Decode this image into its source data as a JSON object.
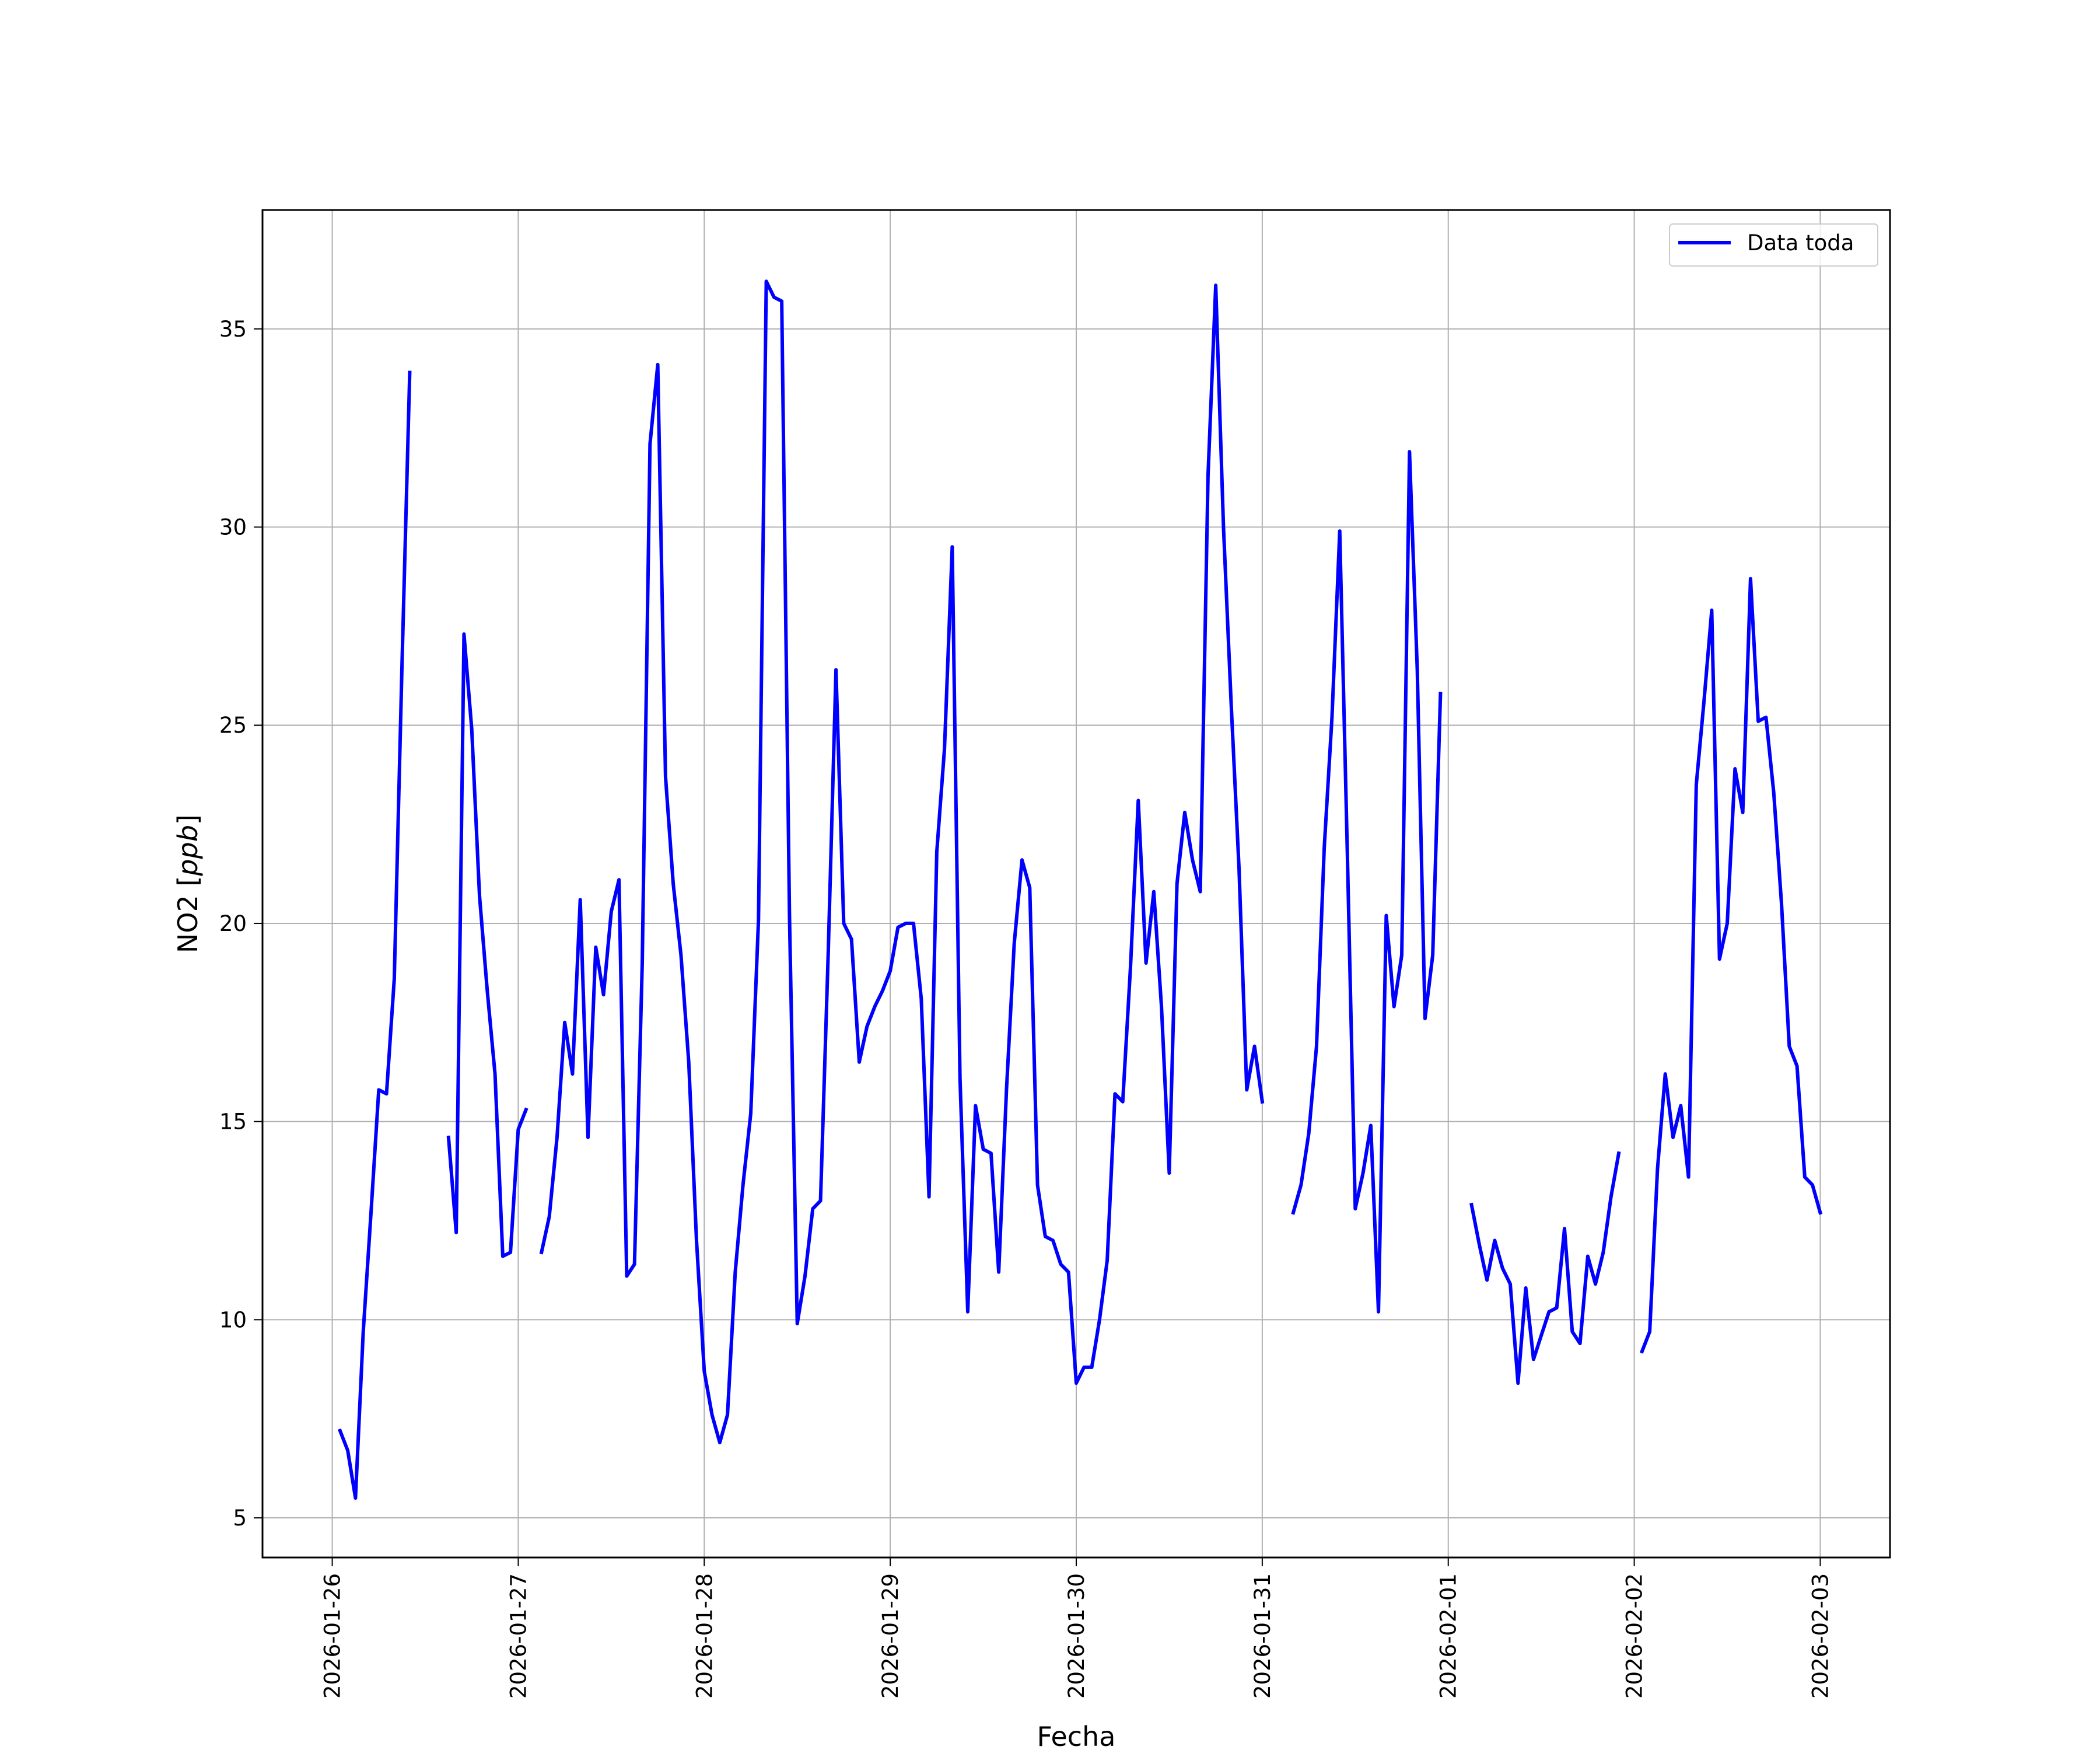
{
  "chart_data": {
    "type": "line",
    "title": "",
    "xlabel": "Fecha",
    "ylabel_main": "NO2 [",
    "ylabel_unit": "ppb",
    "ylabel_close": "]",
    "xlim": [
      "2026-01-25T15:00",
      "2026-02-03T09:00"
    ],
    "ylim": [
      4,
      38
    ],
    "grid": true,
    "legend": {
      "placement": "top-right",
      "entries": [
        "Data toda"
      ]
    },
    "x_ticks": [
      "2026-01-26",
      "2026-01-27",
      "2026-01-28",
      "2026-01-29",
      "2026-01-30",
      "2026-01-31",
      "2026-02-01",
      "2026-02-02",
      "2026-02-03"
    ],
    "y_ticks": [
      5,
      10,
      15,
      20,
      25,
      30,
      35
    ],
    "series": [
      {
        "name": "Data toda",
        "color": "#0000ff",
        "points": [
          [
            "2026-01-26T01:00",
            7.2
          ],
          [
            "2026-01-26T02:00",
            6.7
          ],
          [
            "2026-01-26T03:00",
            5.5
          ],
          [
            "2026-01-26T04:00",
            9.7
          ],
          [
            "2026-01-26T05:00",
            12.7
          ],
          [
            "2026-01-26T06:00",
            15.8
          ],
          [
            "2026-01-26T07:00",
            15.7
          ],
          [
            "2026-01-26T08:00",
            18.6
          ],
          [
            "2026-01-26T09:00",
            26.5
          ],
          [
            "2026-01-26T10:00",
            33.9
          ],
          null,
          [
            "2026-01-26T15:00",
            14.6
          ],
          [
            "2026-01-26T16:00",
            12.2
          ],
          [
            "2026-01-26T17:00",
            27.3
          ],
          [
            "2026-01-26T18:00",
            24.9
          ],
          [
            "2026-01-26T19:00",
            20.7
          ],
          [
            "2026-01-26T20:00",
            18.3
          ],
          [
            "2026-01-26T21:00",
            16.2
          ],
          [
            "2026-01-26T22:00",
            11.6
          ],
          [
            "2026-01-26T23:00",
            11.7
          ],
          [
            "2026-01-27T00:00",
            14.8
          ],
          [
            "2026-01-27T01:00",
            15.3
          ],
          null,
          [
            "2026-01-27T03:00",
            11.7
          ],
          [
            "2026-01-27T04:00",
            12.6
          ],
          [
            "2026-01-27T05:00",
            14.6
          ],
          [
            "2026-01-27T06:00",
            17.5
          ],
          [
            "2026-01-27T07:00",
            16.2
          ],
          [
            "2026-01-27T08:00",
            20.6
          ],
          [
            "2026-01-27T09:00",
            14.6
          ],
          [
            "2026-01-27T10:00",
            19.4
          ],
          [
            "2026-01-27T11:00",
            18.2
          ],
          [
            "2026-01-27T12:00",
            20.3
          ],
          [
            "2026-01-27T13:00",
            21.1
          ],
          [
            "2026-01-27T14:00",
            11.1
          ],
          [
            "2026-01-27T15:00",
            11.4
          ],
          [
            "2026-01-27T16:00",
            19.0
          ],
          [
            "2026-01-27T17:00",
            32.1
          ],
          [
            "2026-01-27T18:00",
            34.1
          ],
          [
            "2026-01-27T19:00",
            23.7
          ],
          [
            "2026-01-27T20:00",
            21.0
          ],
          [
            "2026-01-27T21:00",
            19.2
          ],
          [
            "2026-01-27T22:00",
            16.5
          ],
          [
            "2026-01-27T23:00",
            12.0
          ],
          [
            "2026-01-28T00:00",
            8.7
          ],
          [
            "2026-01-28T01:00",
            7.6
          ],
          [
            "2026-01-28T02:00",
            6.9
          ],
          [
            "2026-01-28T03:00",
            7.6
          ],
          [
            "2026-01-28T04:00",
            11.2
          ],
          [
            "2026-01-28T05:00",
            13.4
          ],
          [
            "2026-01-28T06:00",
            15.2
          ],
          [
            "2026-01-28T07:00",
            20.1
          ],
          [
            "2026-01-28T08:00",
            36.2
          ],
          [
            "2026-01-28T09:00",
            35.8
          ],
          [
            "2026-01-28T10:00",
            35.7
          ],
          [
            "2026-01-28T11:00",
            20.2
          ],
          [
            "2026-01-28T12:00",
            9.9
          ],
          [
            "2026-01-28T13:00",
            11.1
          ],
          [
            "2026-01-28T14:00",
            12.8
          ],
          [
            "2026-01-28T15:00",
            13.0
          ],
          [
            "2026-01-28T16:00",
            19.3
          ],
          [
            "2026-01-28T17:00",
            26.4
          ],
          [
            "2026-01-28T18:00",
            20.0
          ],
          [
            "2026-01-28T19:00",
            19.6
          ],
          [
            "2026-01-28T20:00",
            16.5
          ],
          [
            "2026-01-28T21:00",
            17.4
          ],
          [
            "2026-01-28T22:00",
            17.9
          ],
          [
            "2026-01-28T23:00",
            18.3
          ],
          [
            "2026-01-29T00:00",
            18.8
          ],
          [
            "2026-01-29T01:00",
            19.9
          ],
          [
            "2026-01-29T02:00",
            20.0
          ],
          [
            "2026-01-29T03:00",
            20.0
          ],
          [
            "2026-01-29T04:00",
            18.1
          ],
          [
            "2026-01-29T05:00",
            13.1
          ],
          [
            "2026-01-29T06:00",
            21.8
          ],
          [
            "2026-01-29T07:00",
            24.4
          ],
          [
            "2026-01-29T08:00",
            29.5
          ],
          [
            "2026-01-29T09:00",
            16.1
          ],
          [
            "2026-01-29T10:00",
            10.2
          ],
          [
            "2026-01-29T11:00",
            15.4
          ],
          [
            "2026-01-29T12:00",
            14.3
          ],
          [
            "2026-01-29T13:00",
            14.2
          ],
          [
            "2026-01-29T14:00",
            11.2
          ],
          [
            "2026-01-29T15:00",
            15.8
          ],
          [
            "2026-01-29T16:00",
            19.5
          ],
          [
            "2026-01-29T17:00",
            21.6
          ],
          [
            "2026-01-29T18:00",
            20.9
          ],
          [
            "2026-01-29T19:00",
            13.4
          ],
          [
            "2026-01-29T20:00",
            12.1
          ],
          [
            "2026-01-29T21:00",
            12.0
          ],
          [
            "2026-01-29T22:00",
            11.4
          ],
          [
            "2026-01-29T23:00",
            11.2
          ],
          [
            "2026-01-30T00:00",
            8.4
          ],
          [
            "2026-01-30T01:00",
            8.8
          ],
          [
            "2026-01-30T02:00",
            8.8
          ],
          [
            "2026-01-30T03:00",
            10.0
          ],
          [
            "2026-01-30T04:00",
            11.5
          ],
          [
            "2026-01-30T05:00",
            15.7
          ],
          [
            "2026-01-30T06:00",
            15.5
          ],
          [
            "2026-01-30T07:00",
            18.9
          ],
          [
            "2026-01-30T08:00",
            23.1
          ],
          [
            "2026-01-30T09:00",
            19.0
          ],
          [
            "2026-01-30T10:00",
            20.8
          ],
          [
            "2026-01-30T11:00",
            17.9
          ],
          [
            "2026-01-30T12:00",
            13.7
          ],
          [
            "2026-01-30T13:00",
            21.0
          ],
          [
            "2026-01-30T14:00",
            22.8
          ],
          [
            "2026-01-30T15:00",
            21.6
          ],
          [
            "2026-01-30T16:00",
            20.8
          ],
          [
            "2026-01-30T17:00",
            31.3
          ],
          [
            "2026-01-30T18:00",
            36.1
          ],
          [
            "2026-01-30T19:00",
            30.0
          ],
          [
            "2026-01-30T20:00",
            25.5
          ],
          [
            "2026-01-30T21:00",
            21.4
          ],
          [
            "2026-01-30T22:00",
            15.8
          ],
          [
            "2026-01-30T23:00",
            16.9
          ],
          [
            "2026-01-31T00:00",
            15.5
          ],
          null,
          [
            "2026-01-31T04:00",
            12.7
          ],
          [
            "2026-01-31T05:00",
            13.4
          ],
          [
            "2026-01-31T06:00",
            14.7
          ],
          [
            "2026-01-31T07:00",
            16.9
          ],
          [
            "2026-01-31T08:00",
            21.9
          ],
          [
            "2026-01-31T09:00",
            25.2
          ],
          [
            "2026-01-31T10:00",
            29.9
          ],
          [
            "2026-01-31T11:00",
            21.6
          ],
          [
            "2026-01-31T12:00",
            12.8
          ],
          [
            "2026-01-31T13:00",
            13.7
          ],
          [
            "2026-01-31T14:00",
            14.9
          ],
          [
            "2026-01-31T15:00",
            10.2
          ],
          [
            "2026-01-31T16:00",
            20.2
          ],
          [
            "2026-01-31T17:00",
            17.9
          ],
          [
            "2026-01-31T18:00",
            19.2
          ],
          [
            "2026-01-31T19:00",
            31.9
          ],
          [
            "2026-01-31T20:00",
            26.4
          ],
          [
            "2026-01-31T21:00",
            17.6
          ],
          [
            "2026-01-31T22:00",
            19.2
          ],
          [
            "2026-01-31T23:00",
            25.8
          ],
          null,
          [
            "2026-02-01T03:00",
            12.9
          ],
          [
            "2026-02-01T04:00",
            11.9
          ],
          [
            "2026-02-01T05:00",
            11.0
          ],
          [
            "2026-02-01T06:00",
            12.0
          ],
          [
            "2026-02-01T07:00",
            11.3
          ],
          [
            "2026-02-01T08:00",
            10.9
          ],
          [
            "2026-02-01T09:00",
            8.4
          ],
          [
            "2026-02-01T10:00",
            10.8
          ],
          [
            "2026-02-01T11:00",
            9.0
          ],
          [
            "2026-02-01T12:00",
            9.6
          ],
          [
            "2026-02-01T13:00",
            10.2
          ],
          [
            "2026-02-01T14:00",
            10.3
          ],
          [
            "2026-02-01T15:00",
            12.3
          ],
          [
            "2026-02-01T16:00",
            9.7
          ],
          [
            "2026-02-01T17:00",
            9.4
          ],
          [
            "2026-02-01T18:00",
            11.6
          ],
          [
            "2026-02-01T19:00",
            10.9
          ],
          [
            "2026-02-01T20:00",
            11.7
          ],
          [
            "2026-02-01T21:00",
            13.1
          ],
          [
            "2026-02-01T22:00",
            14.2
          ],
          null,
          [
            "2026-02-02T01:00",
            9.2
          ],
          [
            "2026-02-02T02:00",
            9.7
          ],
          [
            "2026-02-02T03:00",
            13.8
          ],
          [
            "2026-02-02T04:00",
            16.2
          ],
          [
            "2026-02-02T05:00",
            14.6
          ],
          [
            "2026-02-02T06:00",
            15.4
          ],
          [
            "2026-02-02T07:00",
            13.6
          ],
          [
            "2026-02-02T08:00",
            23.5
          ],
          [
            "2026-02-02T09:00",
            25.6
          ],
          [
            "2026-02-02T10:00",
            27.9
          ],
          [
            "2026-02-02T11:00",
            19.1
          ],
          [
            "2026-02-02T12:00",
            20.0
          ],
          [
            "2026-02-02T13:00",
            23.9
          ],
          [
            "2026-02-02T14:00",
            22.8
          ],
          [
            "2026-02-02T15:00",
            28.7
          ],
          [
            "2026-02-02T16:00",
            25.1
          ],
          [
            "2026-02-02T17:00",
            25.2
          ],
          [
            "2026-02-02T18:00",
            23.3
          ],
          [
            "2026-02-02T19:00",
            20.5
          ],
          [
            "2026-02-02T20:00",
            16.9
          ],
          [
            "2026-02-02T21:00",
            16.4
          ],
          [
            "2026-02-02T22:00",
            13.6
          ],
          [
            "2026-02-02T23:00",
            13.4
          ],
          [
            "2026-02-03T00:00",
            12.7
          ]
        ]
      }
    ]
  }
}
